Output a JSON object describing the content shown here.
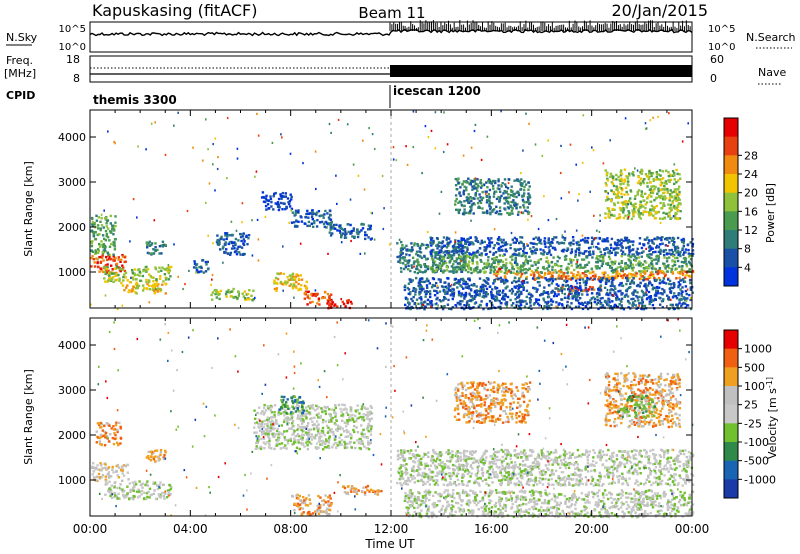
{
  "header": {
    "station": "Kapuskasing (fitACF)",
    "beam": "Beam 11",
    "date": "20/Jan/2015"
  },
  "noise_panel": {
    "left_label": "N.Sky",
    "right_label": "N.Search",
    "left_ticks": [
      "10^5",
      "10^0"
    ],
    "right_ticks": [
      "10^5",
      "10^0"
    ]
  },
  "freq_panel": {
    "left_label": "Freq.",
    "left_unit": "[MHz]",
    "right_label": "Nave",
    "left_ticks": [
      "18",
      "8"
    ],
    "right_ticks": [
      "60",
      "0"
    ]
  },
  "cpid": {
    "label": "CPID",
    "segments": [
      {
        "name": "themis 3300",
        "start_hr": 0,
        "end_hr": 12
      },
      {
        "name": "icescan 1200",
        "start_hr": 12,
        "end_hr": 24
      }
    ]
  },
  "chart_data": [
    {
      "type": "heatmap",
      "title": "Power",
      "xlabel": "",
      "ylabel": "Slant Range [km]",
      "xlim": [
        0,
        24
      ],
      "ylim": [
        200,
        4600
      ],
      "yticks": [
        1000,
        2000,
        3000,
        4000
      ],
      "colorbar": {
        "label": "Power [dB]",
        "ticks": [
          "4",
          "8",
          "12",
          "16",
          "20",
          "24",
          "28"
        ],
        "colors": [
          "#0033dd",
          "#1a4fa8",
          "#2e7d78",
          "#4a9a50",
          "#8fc23a",
          "#f2c400",
          "#f08a10",
          "#e84010",
          "#e60000"
        ]
      },
      "regions": [
        {
          "t0": 0.0,
          "t1": 1.4,
          "r0": 1000,
          "r1": 1400,
          "c": 7
        },
        {
          "t0": 0.0,
          "t1": 1.0,
          "r0": 1400,
          "r1": 2300,
          "c": 3
        },
        {
          "t0": 0.5,
          "t1": 3.2,
          "r0": 800,
          "r1": 1150,
          "c": 4
        },
        {
          "t0": 1.2,
          "t1": 3.0,
          "r0": 550,
          "r1": 800,
          "c": 5
        },
        {
          "t0": 2.2,
          "t1": 3.0,
          "r0": 1400,
          "r1": 1700,
          "c": 2
        },
        {
          "t0": 4.1,
          "t1": 4.7,
          "r0": 1000,
          "r1": 1300,
          "c": 1
        },
        {
          "t0": 5.0,
          "t1": 6.3,
          "r0": 1400,
          "r1": 1900,
          "c": 1
        },
        {
          "t0": 4.8,
          "t1": 6.5,
          "r0": 400,
          "r1": 650,
          "c": 4
        },
        {
          "t0": 6.8,
          "t1": 8.0,
          "r0": 2400,
          "r1": 2800,
          "c": 0
        },
        {
          "t0": 8.0,
          "t1": 9.6,
          "r0": 2000,
          "r1": 2400,
          "c": 1
        },
        {
          "t0": 9.5,
          "t1": 11.2,
          "r0": 1750,
          "r1": 2100,
          "c": 1
        },
        {
          "t0": 7.3,
          "t1": 8.6,
          "r0": 600,
          "r1": 1000,
          "c": 5
        },
        {
          "t0": 8.5,
          "t1": 9.6,
          "r0": 300,
          "r1": 600,
          "c": 7
        },
        {
          "t0": 9.4,
          "t1": 10.4,
          "r0": 220,
          "r1": 400,
          "c": 8
        },
        {
          "t0": 12.2,
          "t1": 15.0,
          "r0": 1000,
          "r1": 1700,
          "c": 2
        },
        {
          "t0": 13.5,
          "t1": 24.0,
          "r0": 1400,
          "r1": 1800,
          "c": 1
        },
        {
          "t0": 13.5,
          "t1": 24.0,
          "r0": 1000,
          "r1": 1400,
          "c": 3
        },
        {
          "t0": 16.0,
          "t1": 24.0,
          "r0": 850,
          "r1": 1050,
          "c": 6
        },
        {
          "t0": 14.5,
          "t1": 17.5,
          "r0": 2300,
          "r1": 3100,
          "c": 2
        },
        {
          "t0": 18.5,
          "t1": 20.5,
          "r0": 600,
          "r1": 700,
          "c": 7
        },
        {
          "t0": 20.5,
          "t1": 23.5,
          "r0": 2200,
          "r1": 3300,
          "c": 4
        },
        {
          "t0": 12.5,
          "t1": 24.0,
          "r0": 200,
          "r1": 900,
          "c": 1
        }
      ]
    },
    {
      "type": "heatmap",
      "title": "Velocity",
      "xlabel": "Time UT",
      "ylabel": "Slant Range [km]",
      "xlim": [
        0,
        24
      ],
      "ylim": [
        200,
        4600
      ],
      "yticks": [
        1000,
        2000,
        3000,
        4000
      ],
      "xticks": [
        "00:00",
        "04:00",
        "08:00",
        "12:00",
        "16:00",
        "20:00",
        "00:00"
      ],
      "colorbar": {
        "label": "Velocity [m s^-1]",
        "ticks": [
          "1000",
          "500",
          "100",
          "25",
          "-25",
          "-100",
          "-500",
          "-1000"
        ],
        "colors": [
          "#1a3aa8",
          "#1a64b4",
          "#2f8a4a",
          "#70c030",
          "#c8c8c8",
          "#c0c0c0",
          "#f0a020",
          "#f06010",
          "#e60000"
        ]
      },
      "regions": [
        {
          "t0": 0.0,
          "t1": 1.5,
          "r0": 1000,
          "r1": 1400,
          "c": 5
        },
        {
          "t0": 0.2,
          "t1": 1.2,
          "r0": 1800,
          "r1": 2300,
          "c": 6
        },
        {
          "t0": 0.5,
          "t1": 3.2,
          "r0": 600,
          "r1": 1000,
          "c": 4
        },
        {
          "t0": 2.2,
          "t1": 3.0,
          "r0": 1400,
          "r1": 1700,
          "c": 6
        },
        {
          "t0": 6.5,
          "t1": 11.2,
          "r0": 1700,
          "r1": 2700,
          "c": 4
        },
        {
          "t0": 7.5,
          "t1": 8.5,
          "r0": 2500,
          "r1": 2900,
          "c": 2
        },
        {
          "t0": 8.0,
          "t1": 9.6,
          "r0": 250,
          "r1": 700,
          "c": 6
        },
        {
          "t0": 10.0,
          "t1": 11.6,
          "r0": 700,
          "r1": 900,
          "c": 6
        },
        {
          "t0": 12.2,
          "t1": 24.0,
          "r0": 900,
          "r1": 1700,
          "c": 4
        },
        {
          "t0": 14.5,
          "t1": 17.5,
          "r0": 2300,
          "r1": 3200,
          "c": 6
        },
        {
          "t0": 20.5,
          "t1": 23.5,
          "r0": 2200,
          "r1": 3400,
          "c": 6
        },
        {
          "t0": 21.0,
          "t1": 22.5,
          "r0": 2400,
          "r1": 2900,
          "c": 3
        },
        {
          "t0": 12.5,
          "t1": 24.0,
          "r0": 200,
          "r1": 800,
          "c": 4
        }
      ]
    }
  ]
}
